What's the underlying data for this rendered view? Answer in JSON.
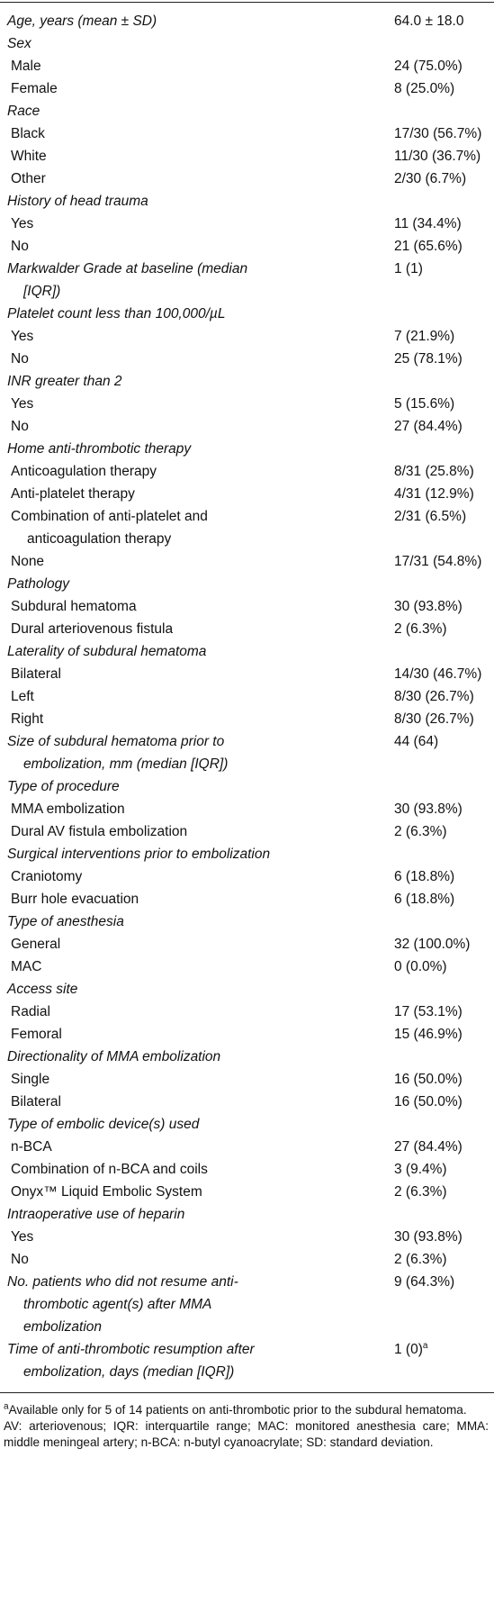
{
  "table": {
    "sections": [
      {
        "title": "Age, years (mean ± SD)",
        "value": "64.0 ± 18.0",
        "items": []
      },
      {
        "title": "Sex",
        "items": [
          {
            "label": "Male",
            "value": "24 (75.0%)"
          },
          {
            "label": "Female",
            "value": "8 (25.0%)"
          }
        ]
      },
      {
        "title": "Race",
        "items": [
          {
            "label": "Black",
            "value": "17/30 (56.7%)"
          },
          {
            "label": "White",
            "value": "11/30 (36.7%)"
          },
          {
            "label": "Other",
            "value": "2/30 (6.7%)"
          }
        ]
      },
      {
        "title": "History of head trauma",
        "items": [
          {
            "label": "Yes",
            "value": "11 (34.4%)"
          },
          {
            "label": "No",
            "value": "21 (65.6%)"
          }
        ]
      },
      {
        "title": "Markwalder Grade at baseline (median [IQR])",
        "value": "1 (1)",
        "items": []
      },
      {
        "title": "Platelet count less than 100,000/µL",
        "items": [
          {
            "label": "Yes",
            "value": "7 (21.9%)"
          },
          {
            "label": "No",
            "value": "25 (78.1%)"
          }
        ]
      },
      {
        "title": "INR greater than 2",
        "items": [
          {
            "label": "Yes",
            "value": "5 (15.6%)"
          },
          {
            "label": "No",
            "value": "27 (84.4%)"
          }
        ]
      },
      {
        "title": "Home anti-thrombotic therapy",
        "items": [
          {
            "label": "Anticoagulation therapy",
            "value": "8/31 (25.8%)"
          },
          {
            "label": "Anti-platelet therapy",
            "value": "4/31 (12.9%)"
          },
          {
            "label": "Combination of anti-platelet and anticoagulation therapy",
            "value": "2/31 (6.5%)"
          },
          {
            "label": "None",
            "value": "17/31 (54.8%)"
          }
        ]
      },
      {
        "title": "Pathology",
        "items": [
          {
            "label": "Subdural hematoma",
            "value": "30 (93.8%)"
          },
          {
            "label": "Dural arteriovenous fistula",
            "value": "2 (6.3%)"
          }
        ]
      },
      {
        "title": "Laterality of subdural hematoma",
        "items": [
          {
            "label": "Bilateral",
            "value": "14/30 (46.7%)"
          },
          {
            "label": "Left",
            "value": "8/30 (26.7%)"
          },
          {
            "label": "Right",
            "value": "8/30 (26.7%)"
          }
        ]
      },
      {
        "title": "Size of subdural hematoma prior to embolization, mm (median [IQR])",
        "value": "44 (64)",
        "items": []
      },
      {
        "title": "Type of procedure",
        "items": [
          {
            "label": "MMA embolization",
            "value": "30 (93.8%)"
          },
          {
            "label": "Dural AV fistula embolization",
            "value": "2 (6.3%)"
          }
        ]
      },
      {
        "title": "Surgical interventions prior to embolization",
        "items": [
          {
            "label": "Craniotomy",
            "value": "6 (18.8%)"
          },
          {
            "label": "Burr hole evacuation",
            "value": "6 (18.8%)"
          }
        ]
      },
      {
        "title": "Type of anesthesia",
        "items": [
          {
            "label": "General",
            "value": "32 (100.0%)"
          },
          {
            "label": "MAC",
            "value": "0 (0.0%)"
          }
        ]
      },
      {
        "title": "Access site",
        "items": [
          {
            "label": "Radial",
            "value": "17 (53.1%)"
          },
          {
            "label": "Femoral",
            "value": "15 (46.9%)"
          }
        ]
      },
      {
        "title": "Directionality of MMA embolization",
        "items": [
          {
            "label": "Single",
            "value": "16 (50.0%)"
          },
          {
            "label": "Bilateral",
            "value": "16 (50.0%)"
          }
        ]
      },
      {
        "title": "Type of embolic device(s) used",
        "items": [
          {
            "label": "n-BCA",
            "value": "27 (84.4%)"
          },
          {
            "label": "Combination of n-BCA and coils",
            "value": "3 (9.4%)"
          },
          {
            "label": "Onyx™ Liquid Embolic System",
            "value": "2 (6.3%)"
          }
        ]
      },
      {
        "title": "Intraoperative use of heparin",
        "items": [
          {
            "label": "Yes",
            "value": "30 (93.8%)"
          },
          {
            "label": "No",
            "value": "2 (6.3%)"
          }
        ]
      },
      {
        "title": "No. patients who did not resume anti-thrombotic agent(s) after MMA embolization",
        "value": "9 (64.3%)",
        "items": []
      },
      {
        "title": "Time of anti-thrombotic resumption after embolization, days (median [IQR])",
        "value": "1 (0)",
        "value_note": "a",
        "items": []
      }
    ]
  },
  "footnotes": [
    {
      "marker": "a",
      "text": "Available only for 5 of 14 patients on anti-thrombotic prior to the subdural hematoma."
    },
    {
      "text": "AV: arteriovenous; IQR: interquartile range; MAC: monitored anesthesia care; MMA: middle meningeal artery; n-BCA: n-butyl cyanoacrylate; SD: standard deviation."
    }
  ]
}
